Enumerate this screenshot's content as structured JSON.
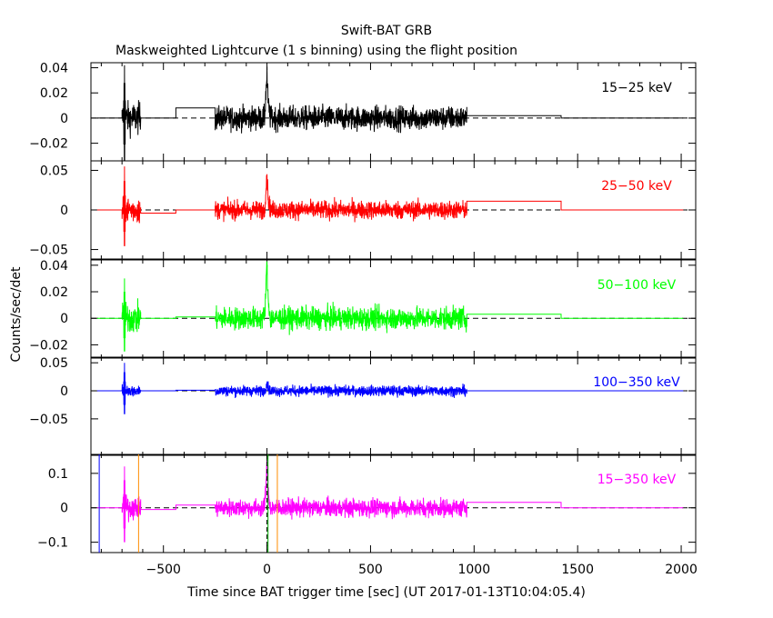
{
  "chart_data": {
    "type": "line",
    "title": "Swift-BAT GRB",
    "subtitle": "Maskweighted Lightcurve (1 s binning) using the flight position",
    "xlabel": "Time since BAT trigger time [sec] (UT 2017-01-13T10:04:05.4)",
    "ylabel": "Counts/sec/det",
    "xlim": [
      -850,
      2070
    ],
    "xticks": [
      -500,
      0,
      500,
      1000,
      1500,
      2000
    ],
    "xtick_labels": [
      "−500",
      "0",
      "500",
      "1000",
      "1500",
      "2000"
    ],
    "vertical_markers": {
      "orange": [
        -620,
        50
      ],
      "green": [
        5
      ],
      "black_dashed": [
        0
      ],
      "blue": [
        -810
      ]
    },
    "panels": [
      {
        "name": "15-25 keV",
        "label": "15−25 keV",
        "color": "#000000",
        "ylim": [
          -0.034,
          0.044
        ],
        "yticks": [
          -0.02,
          0,
          0.02,
          0.04
        ],
        "ytick_labels": [
          "−0.02",
          "0",
          "0.02",
          "0.04"
        ],
        "segments": [
          {
            "kind": "flat",
            "x": [
              -820,
              -700
            ],
            "value": 0
          },
          {
            "kind": "noise",
            "x": [
              -700,
              -610
            ],
            "amp": 0.012,
            "spike": 0.042
          },
          {
            "kind": "flat",
            "x": [
              -610,
              -440
            ],
            "value": 0
          },
          {
            "kind": "flat",
            "x": [
              -440,
              -250
            ],
            "value": 0.008
          },
          {
            "kind": "noise",
            "x": [
              -250,
              965
            ],
            "amp": 0.009,
            "burst_peak": 0.035
          },
          {
            "kind": "flat",
            "x": [
              965,
              1420
            ],
            "value": 0.002
          },
          {
            "kind": "flat",
            "x": [
              1420,
              2010
            ],
            "value": 0
          }
        ]
      },
      {
        "name": "25-50 keV",
        "label": "25−50 keV",
        "color": "#ff0000",
        "ylim": [
          -0.062,
          0.062
        ],
        "yticks": [
          -0.05,
          0,
          0.05
        ],
        "ytick_labels": [
          "−0.05",
          "0",
          "0.05"
        ],
        "segments": [
          {
            "kind": "flat",
            "x": [
              -820,
              -700
            ],
            "value": 0
          },
          {
            "kind": "noise",
            "x": [
              -700,
              -610
            ],
            "amp": 0.016,
            "spike": 0.055
          },
          {
            "kind": "flat",
            "x": [
              -610,
              -440
            ],
            "value": -0.004
          },
          {
            "kind": "flat",
            "x": [
              -440,
              -250
            ],
            "value": 0
          },
          {
            "kind": "noise",
            "x": [
              -250,
              965
            ],
            "amp": 0.011,
            "burst_peak": 0.045
          },
          {
            "kind": "flat",
            "x": [
              965,
              1420
            ],
            "value": 0.011
          },
          {
            "kind": "flat",
            "x": [
              1420,
              2010
            ],
            "value": 0
          }
        ]
      },
      {
        "name": "50-100 keV",
        "label": "50−100 keV",
        "color": "#00ff00",
        "ylim": [
          -0.03,
          0.044
        ],
        "yticks": [
          -0.02,
          0,
          0.02,
          0.04
        ],
        "ytick_labels": [
          "−0.02",
          "0",
          "0.02",
          "0.04"
        ],
        "segments": [
          {
            "kind": "flat",
            "x": [
              -820,
              -700
            ],
            "value": 0
          },
          {
            "kind": "noise",
            "x": [
              -700,
              -610
            ],
            "amp": 0.011,
            "spike": 0.03
          },
          {
            "kind": "flat",
            "x": [
              -610,
              -440
            ],
            "value": 0
          },
          {
            "kind": "flat",
            "x": [
              -440,
              -250
            ],
            "value": 0.001
          },
          {
            "kind": "noise",
            "x": [
              -250,
              965
            ],
            "amp": 0.008,
            "burst_peak": 0.04
          },
          {
            "kind": "flat",
            "x": [
              965,
              1420
            ],
            "value": 0.003
          },
          {
            "kind": "flat",
            "x": [
              1420,
              2010
            ],
            "value": 0
          }
        ]
      },
      {
        "name": "100-350 keV",
        "label": "100−350 keV",
        "color": "#0000ff",
        "ylim": [
          -0.115,
          0.06
        ],
        "yticks": [
          -0.05,
          0,
          0.05
        ],
        "ytick_labels": [
          "−0.05",
          "0",
          "0.05"
        ],
        "segments": [
          {
            "kind": "flat",
            "x": [
              -820,
              -700
            ],
            "value": 0
          },
          {
            "kind": "noise",
            "x": [
              -700,
              -610
            ],
            "amp": 0.01,
            "spike": 0.05
          },
          {
            "kind": "flat",
            "x": [
              -610,
              -440
            ],
            "value": 0
          },
          {
            "kind": "flat",
            "x": [
              -440,
              -250
            ],
            "value": 0.001
          },
          {
            "kind": "noise",
            "x": [
              -250,
              965
            ],
            "amp": 0.009,
            "burst_peak": 0.015
          },
          {
            "kind": "flat",
            "x": [
              965,
              1420
            ],
            "value": 0
          },
          {
            "kind": "flat",
            "x": [
              1420,
              2010
            ],
            "value": 0
          }
        ]
      },
      {
        "name": "15-350 keV",
        "label": "15−350 keV",
        "color": "#ff00ff",
        "ylim": [
          -0.13,
          0.155
        ],
        "yticks": [
          -0.1,
          0,
          0.1
        ],
        "ytick_labels": [
          "−0.1",
          "0",
          "0.1"
        ],
        "segments": [
          {
            "kind": "flat",
            "x": [
              -820,
              -700
            ],
            "value": 0
          },
          {
            "kind": "noise",
            "x": [
              -700,
              -610
            ],
            "amp": 0.03,
            "spike": 0.12
          },
          {
            "kind": "flat",
            "x": [
              -610,
              -440
            ],
            "value": -0.005
          },
          {
            "kind": "flat",
            "x": [
              -440,
              -250
            ],
            "value": 0.008
          },
          {
            "kind": "noise",
            "x": [
              -250,
              965
            ],
            "amp": 0.025,
            "burst_peak": 0.12
          },
          {
            "kind": "flat",
            "x": [
              965,
              1420
            ],
            "value": 0.016
          },
          {
            "kind": "flat",
            "x": [
              1420,
              2010
            ],
            "value": 0
          }
        ]
      }
    ]
  }
}
